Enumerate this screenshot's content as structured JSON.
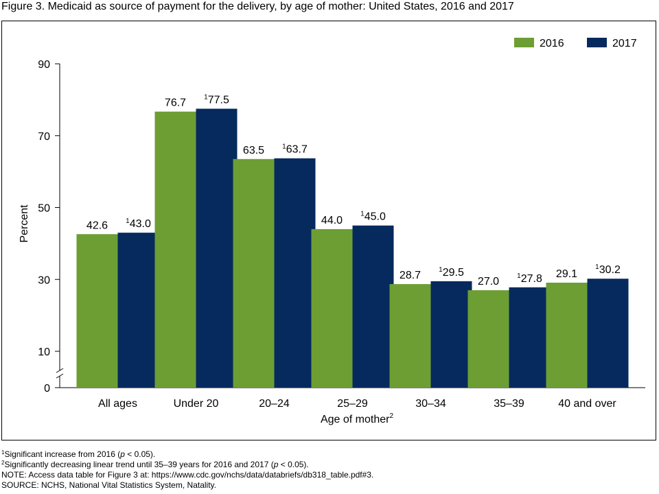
{
  "figure_title": "Figure 3. Medicaid as source of payment for the delivery, by age of mother: United States, 2016 and 2017",
  "colors": {
    "2016": "#6d9e34",
    "2017": "#062a5e"
  },
  "chart_data": {
    "type": "bar",
    "categories": [
      "All ages",
      "Under 20",
      "20–24",
      "25–29",
      "30–34",
      "35–39",
      "40 and over"
    ],
    "series": [
      {
        "name": "2016",
        "values": [
          42.6,
          76.7,
          63.5,
          44.0,
          28.7,
          27.0,
          29.1
        ],
        "labels": [
          "42.6",
          "76.7",
          "63.5",
          "44.0",
          "28.7",
          "27.0",
          "29.1"
        ],
        "label_superscripts": [
          "",
          "",
          "",
          "",
          "",
          "",
          ""
        ]
      },
      {
        "name": "2017",
        "values": [
          43.0,
          77.5,
          63.7,
          45.0,
          29.5,
          27.8,
          30.2
        ],
        "labels": [
          "43.0",
          "77.5",
          "63.7",
          "45.0",
          "29.5",
          "27.8",
          "30.2"
        ],
        "label_superscripts": [
          "1",
          "1",
          "1",
          "1",
          "1",
          "1",
          "1"
        ]
      }
    ],
    "xlabel": "Age of mother",
    "xlabel_superscript": "2",
    "ylabel": "Percent",
    "yticks": [
      0,
      10,
      30,
      50,
      70,
      90
    ],
    "ylim": [
      0,
      90
    ],
    "axis_break": true,
    "legend_position": "top-right",
    "grid": false
  },
  "footnotes": {
    "note1_mark": "1",
    "note1_text": "Significant increase from 2016 (",
    "note1_p": "p",
    "note1_rest": " < 0.05).",
    "note2_mark": "2",
    "note2_text": "Significantly decreasing linear trend until 35–39 years for 2016 and 2017 (",
    "note2_p": "p",
    "note2_rest": " < 0.05).",
    "note_line": "NOTE: Access data table for Figure 3 at: https://www.cdc.gov/nchs/data/databriefs/db318_table.pdf#3.",
    "source_line": "SOURCE: NCHS, National Vital Statistics System, Natality."
  }
}
